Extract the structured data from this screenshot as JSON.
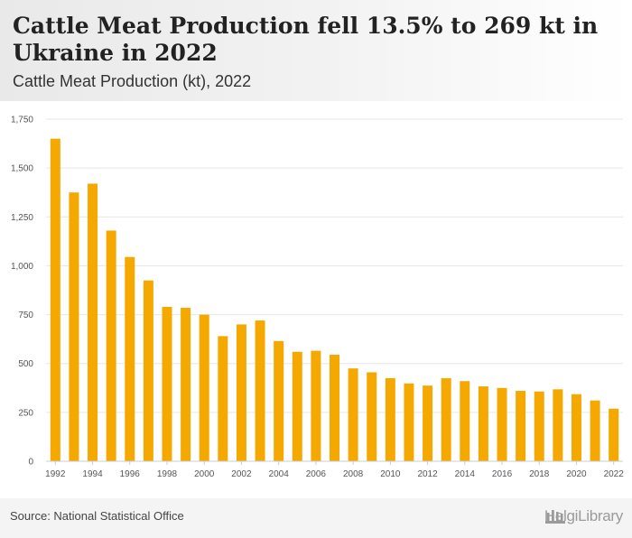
{
  "header": {
    "title": "Cattle Meat Production fell 13.5% to 269 kt in Ukraine in 2022",
    "subtitle": "Cattle Meat Production (kt), 2022"
  },
  "footer": {
    "source": "Source: National Statistical Office",
    "logo_text": "HelgiLibrary"
  },
  "colors": {
    "bar": "#f5a800",
    "grid": "#e6e6e6",
    "axis_text": "#555555"
  },
  "chart_data": {
    "type": "bar",
    "title": "Cattle Meat Production fell 13.5% to 269 kt in Ukraine in 2022",
    "subtitle": "Cattle Meat Production (kt), 2022",
    "xlabel": "",
    "ylabel": "",
    "ylim": [
      0,
      1750
    ],
    "yticks": [
      0,
      250,
      500,
      750,
      1000,
      1250,
      1500,
      1750
    ],
    "ytick_labels": [
      "0",
      "250",
      "500",
      "750",
      "1,000",
      "1,250",
      "1,500",
      "1,750"
    ],
    "grid": true,
    "categories": [
      "1992",
      "1993",
      "1994",
      "1995",
      "1996",
      "1997",
      "1998",
      "1999",
      "2000",
      "2001",
      "2002",
      "2003",
      "2004",
      "2005",
      "2006",
      "2007",
      "2008",
      "2009",
      "2010",
      "2011",
      "2012",
      "2013",
      "2014",
      "2015",
      "2016",
      "2017",
      "2018",
      "2019",
      "2020",
      "2021",
      "2022"
    ],
    "xtick_labels": [
      "1992",
      "1994",
      "1996",
      "1998",
      "2000",
      "2002",
      "2004",
      "2006",
      "2008",
      "2010",
      "2012",
      "2014",
      "2016",
      "2018",
      "2020",
      "2022"
    ],
    "values": [
      1650,
      1375,
      1420,
      1180,
      1045,
      925,
      790,
      785,
      750,
      640,
      700,
      720,
      615,
      560,
      565,
      545,
      475,
      455,
      425,
      398,
      387,
      425,
      410,
      383,
      375,
      360,
      357,
      368,
      343,
      311,
      269
    ]
  }
}
